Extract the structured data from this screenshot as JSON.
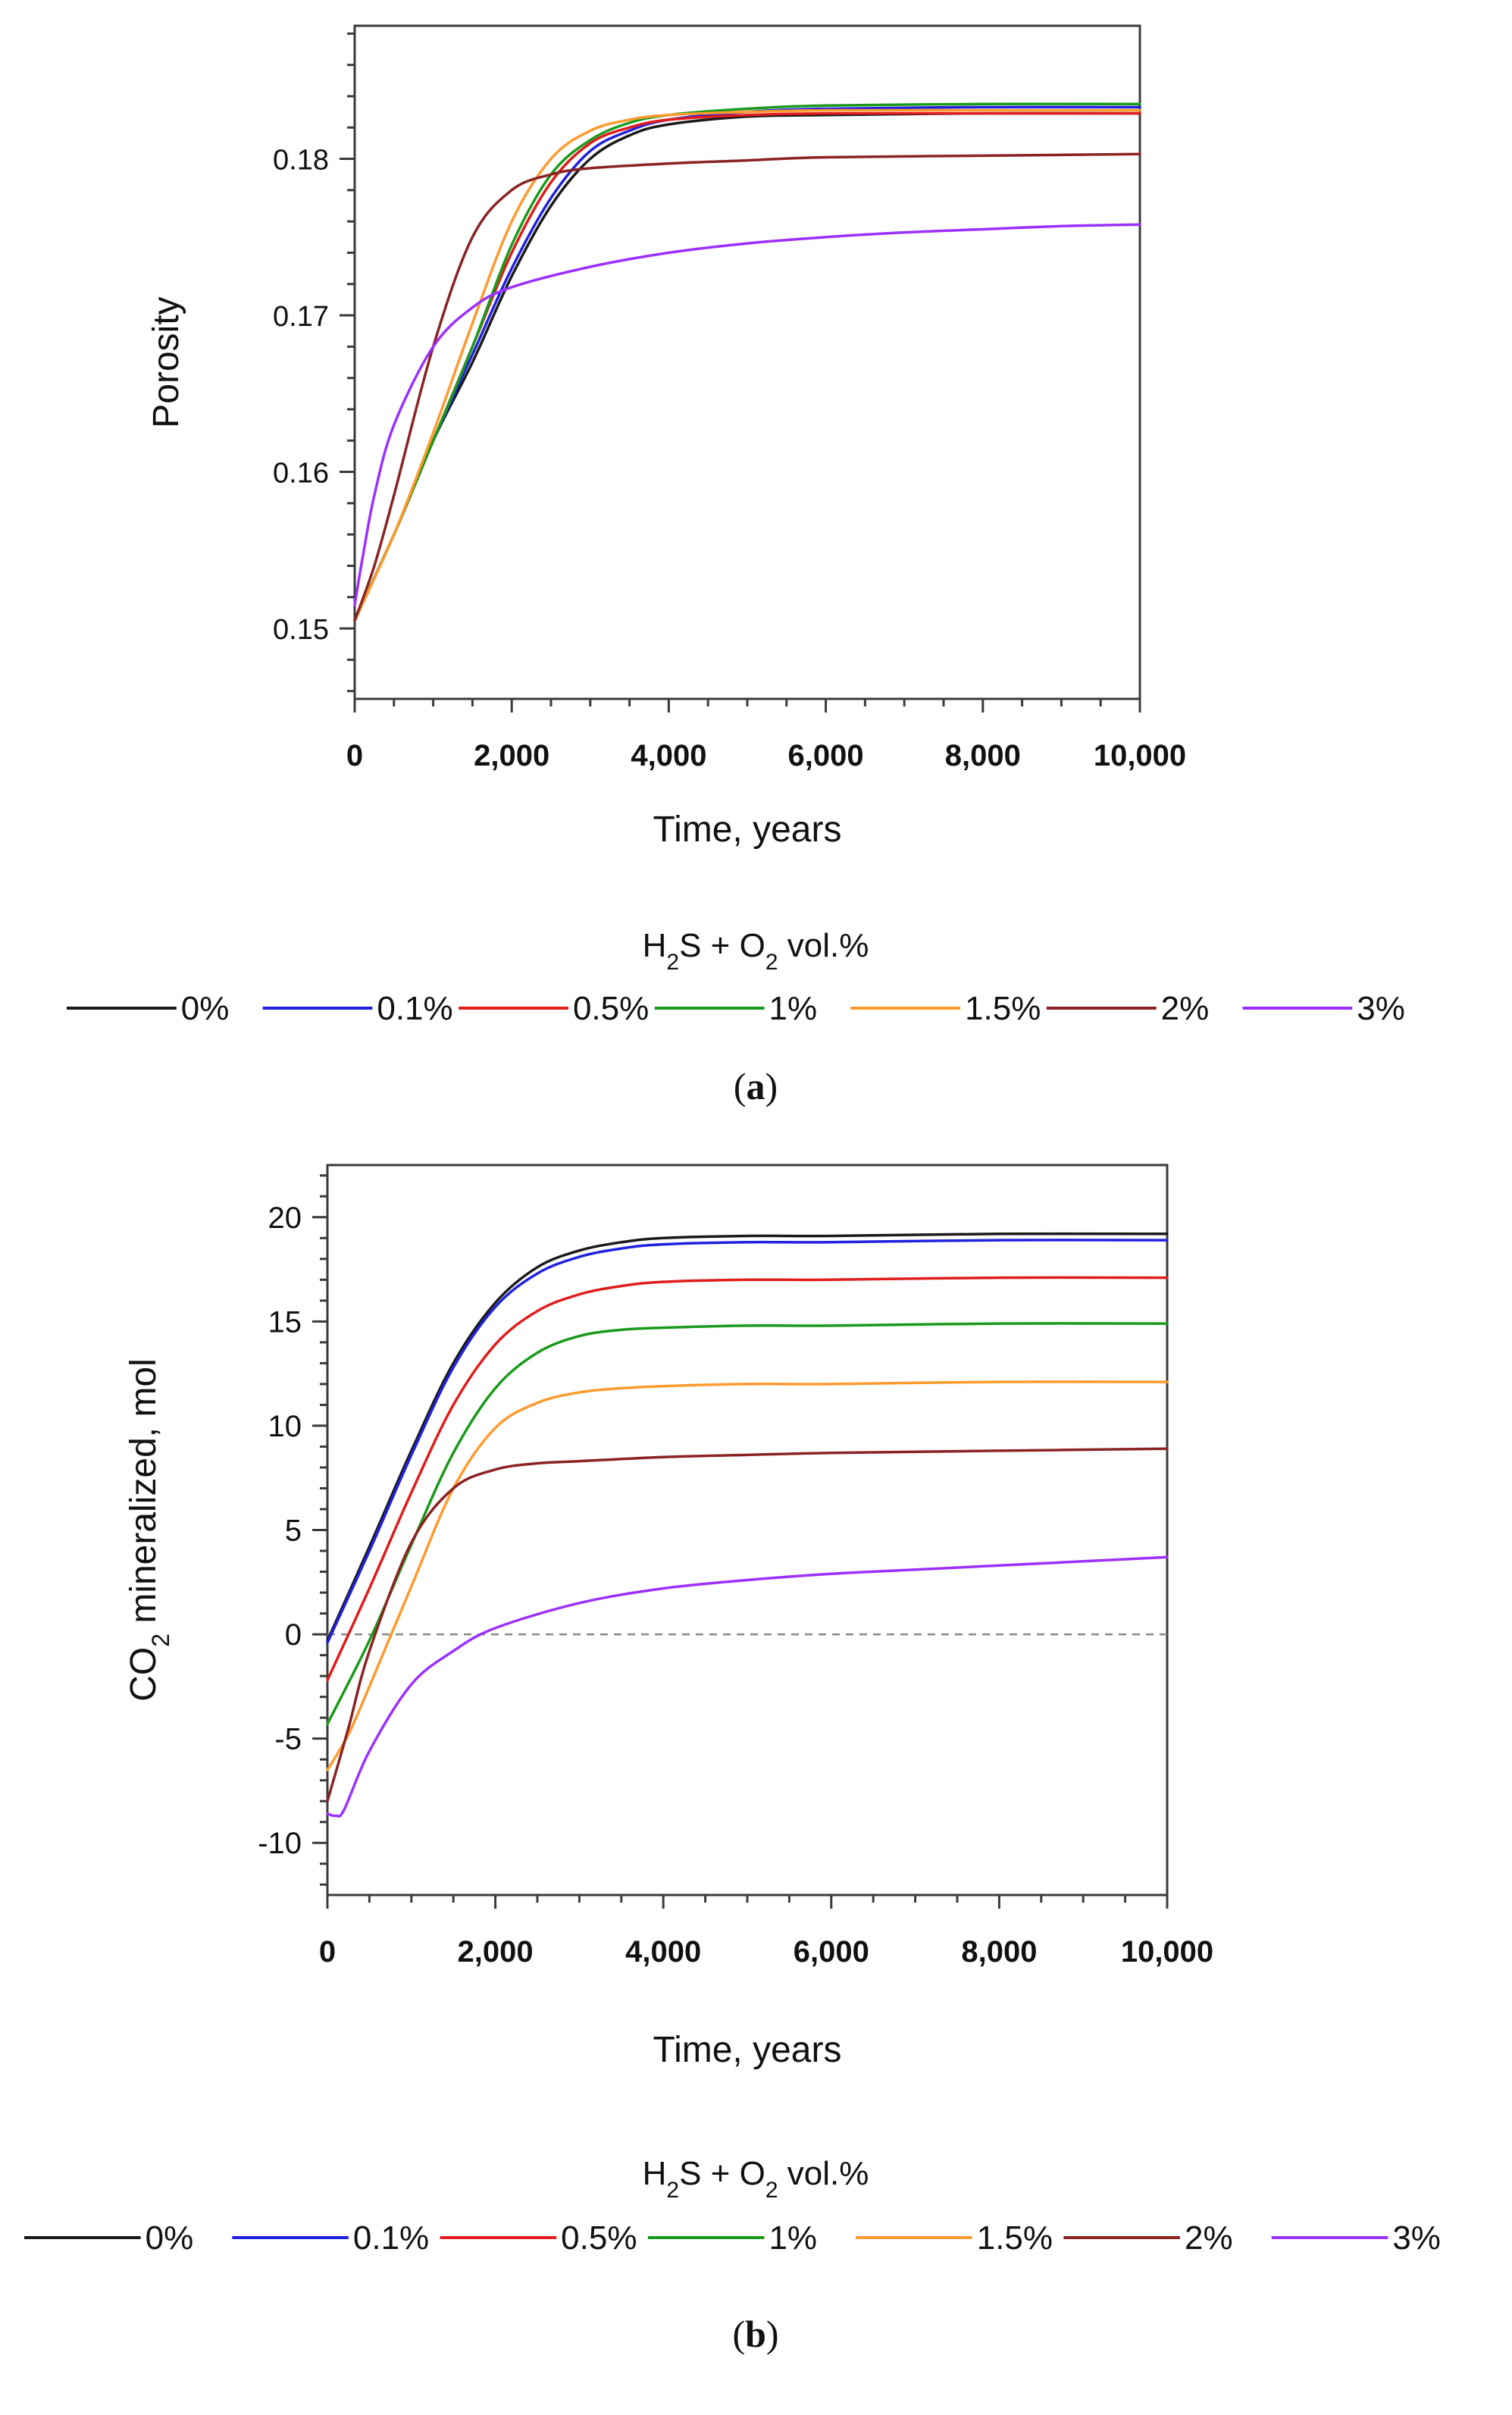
{
  "chart_data": [
    {
      "type": "line",
      "panel_caption": "a",
      "xlabel": "Time, years",
      "ylabel": "Porosity",
      "xlim": [
        0,
        10000
      ],
      "ylim": [
        0.1455,
        0.1885
      ],
      "xticks": [
        0,
        2000,
        4000,
        6000,
        8000,
        10000
      ],
      "xtick_labels": [
        "0",
        "2,000",
        "4,000",
        "6,000",
        "8,000",
        "10,000"
      ],
      "yticks": [
        0.15,
        0.16,
        0.17,
        0.18
      ],
      "ytick_labels": [
        "0.15",
        "0.16",
        "0.17",
        "0.18"
      ],
      "legend_title": "H2S + O2 vol.%",
      "legend_position": "bottom",
      "series": [
        {
          "name": "0%",
          "color": "#1a1a1a",
          "x": [
            0,
            500,
            1000,
            1500,
            2000,
            2500,
            3000,
            3500,
            4000,
            5000,
            6000,
            8000,
            10000
          ],
          "y": [
            0.1505,
            0.156,
            0.162,
            0.167,
            0.1725,
            0.177,
            0.18,
            0.1815,
            0.1822,
            0.1827,
            0.1828,
            0.1829,
            0.1829
          ]
        },
        {
          "name": "0.1%",
          "color": "#2020e0",
          "x": [
            0,
            500,
            1000,
            1500,
            2000,
            2500,
            3000,
            3500,
            4000,
            5000,
            6000,
            8000,
            10000
          ],
          "y": [
            0.1505,
            0.156,
            0.162,
            0.1675,
            0.173,
            0.1775,
            0.1805,
            0.1818,
            0.1825,
            0.183,
            0.1832,
            0.1833,
            0.1833
          ]
        },
        {
          "name": "0.5%",
          "color": "#e01c1c",
          "x": [
            0,
            500,
            1000,
            1500,
            2000,
            2500,
            3000,
            3500,
            4000,
            5000,
            6000,
            8000,
            10000
          ],
          "y": [
            0.1505,
            0.156,
            0.162,
            0.168,
            0.174,
            0.1785,
            0.181,
            0.182,
            0.1825,
            0.1828,
            0.1829,
            0.1829,
            0.1829
          ]
        },
        {
          "name": "1%",
          "color": "#1a9a1a",
          "x": [
            0,
            500,
            1000,
            1500,
            2000,
            2500,
            3000,
            3500,
            4000,
            5000,
            6000,
            8000,
            10000
          ],
          "y": [
            0.1505,
            0.156,
            0.162,
            0.168,
            0.1745,
            0.179,
            0.1812,
            0.1823,
            0.1828,
            0.1832,
            0.1834,
            0.1835,
            0.1835
          ]
        },
        {
          "name": "1.5%",
          "color": "#ff9a2e",
          "x": [
            0,
            500,
            1000,
            1500,
            2000,
            2500,
            3000,
            3500,
            4000,
            5000,
            6000,
            8000,
            10000
          ],
          "y": [
            0.1505,
            0.156,
            0.1625,
            0.1695,
            0.176,
            0.18,
            0.1818,
            0.1825,
            0.1828,
            0.183,
            0.1831,
            0.1831,
            0.1831
          ]
        },
        {
          "name": "2%",
          "color": "#8b2323",
          "x": [
            0,
            250,
            500,
            1000,
            1500,
            2000,
            2500,
            3000,
            4000,
            5000,
            6000,
            8000,
            10000
          ],
          "y": [
            0.1505,
            0.154,
            0.1585,
            0.168,
            0.175,
            0.178,
            0.179,
            0.1794,
            0.1797,
            0.1799,
            0.1801,
            0.1802,
            0.1803
          ]
        },
        {
          "name": "3%",
          "color": "#9b30ff",
          "x": [
            0,
            100,
            250,
            500,
            1000,
            1500,
            2000,
            3000,
            4000,
            5000,
            6000,
            7000,
            8000,
            9000,
            10000
          ],
          "y": [
            0.1515,
            0.1545,
            0.1585,
            0.163,
            0.168,
            0.1705,
            0.1718,
            0.1731,
            0.174,
            0.1746,
            0.175,
            0.1753,
            0.1755,
            0.1757,
            0.1758
          ]
        }
      ]
    },
    {
      "type": "line",
      "panel_caption": "b",
      "xlabel": "Time, years",
      "ylabel": "CO2 mineralized, mol",
      "xlim": [
        0,
        10000
      ],
      "ylim": [
        -12.5,
        22.5
      ],
      "xticks": [
        0,
        2000,
        4000,
        6000,
        8000,
        10000
      ],
      "xtick_labels": [
        "0",
        "2,000",
        "4,000",
        "6,000",
        "8,000",
        "10,000"
      ],
      "yticks": [
        -10,
        -5,
        0,
        5,
        10,
        15,
        20
      ],
      "ytick_labels": [
        "-10",
        "-5",
        "0",
        "5",
        "10",
        "15",
        "20"
      ],
      "reference_line": {
        "y": 0,
        "style": "dashed"
      },
      "legend_title": "H2S + O2 vol.%",
      "legend_position": "bottom",
      "series": [
        {
          "name": "0%",
          "color": "#1a1a1a",
          "x": [
            0,
            500,
            1000,
            1500,
            2000,
            2500,
            3000,
            3500,
            4000,
            5000,
            6000,
            8000,
            10000
          ],
          "y": [
            -0.3,
            4.2,
            8.8,
            13.0,
            15.9,
            17.6,
            18.4,
            18.8,
            19.0,
            19.1,
            19.1,
            19.2,
            19.2
          ]
        },
        {
          "name": "0.1%",
          "color": "#2020e0",
          "x": [
            0,
            500,
            1000,
            1500,
            2000,
            2500,
            3000,
            3500,
            4000,
            5000,
            6000,
            8000,
            10000
          ],
          "y": [
            -0.4,
            4.0,
            8.6,
            12.8,
            15.7,
            17.3,
            18.1,
            18.5,
            18.7,
            18.8,
            18.8,
            18.9,
            18.9
          ]
        },
        {
          "name": "0.5%",
          "color": "#e01c1c",
          "x": [
            0,
            500,
            1000,
            1500,
            2000,
            2500,
            3000,
            3500,
            4000,
            5000,
            6000,
            8000,
            10000
          ],
          "y": [
            -2.2,
            2.2,
            6.8,
            11.0,
            13.9,
            15.5,
            16.3,
            16.7,
            16.9,
            17.0,
            17.0,
            17.1,
            17.1
          ]
        },
        {
          "name": "1%",
          "color": "#1a9a1a",
          "x": [
            0,
            500,
            1000,
            1500,
            2000,
            2500,
            3000,
            3500,
            4000,
            5000,
            6000,
            8000,
            10000
          ],
          "y": [
            -4.3,
            -0.3,
            4.3,
            8.7,
            11.8,
            13.5,
            14.3,
            14.6,
            14.7,
            14.8,
            14.8,
            14.9,
            14.9
          ]
        },
        {
          "name": "1.5%",
          "color": "#ff9a2e",
          "x": [
            0,
            250,
            500,
            1000,
            1500,
            2000,
            2500,
            3000,
            3500,
            4000,
            5000,
            6000,
            8000,
            10000
          ],
          "y": [
            -6.5,
            -4.8,
            -2.5,
            2.3,
            7.0,
            9.9,
            11.1,
            11.6,
            11.8,
            11.9,
            12.0,
            12.0,
            12.1,
            12.1
          ]
        },
        {
          "name": "2%",
          "color": "#8b2323",
          "x": [
            0,
            250,
            500,
            1000,
            1500,
            2000,
            2500,
            3000,
            4000,
            5000,
            6000,
            8000,
            10000
          ],
          "y": [
            -8.0,
            -4.5,
            -0.8,
            4.4,
            7.0,
            7.9,
            8.2,
            8.3,
            8.5,
            8.6,
            8.7,
            8.8,
            8.9
          ]
        },
        {
          "name": "3%",
          "color": "#9b30ff",
          "x": [
            0,
            100,
            200,
            500,
            1000,
            1500,
            2000,
            3000,
            4000,
            5000,
            6000,
            7000,
            8000,
            9000,
            10000
          ],
          "y": [
            -8.6,
            -8.7,
            -8.4,
            -5.6,
            -2.4,
            -0.8,
            0.3,
            1.5,
            2.2,
            2.6,
            2.9,
            3.1,
            3.3,
            3.5,
            3.7
          ]
        }
      ]
    }
  ]
}
